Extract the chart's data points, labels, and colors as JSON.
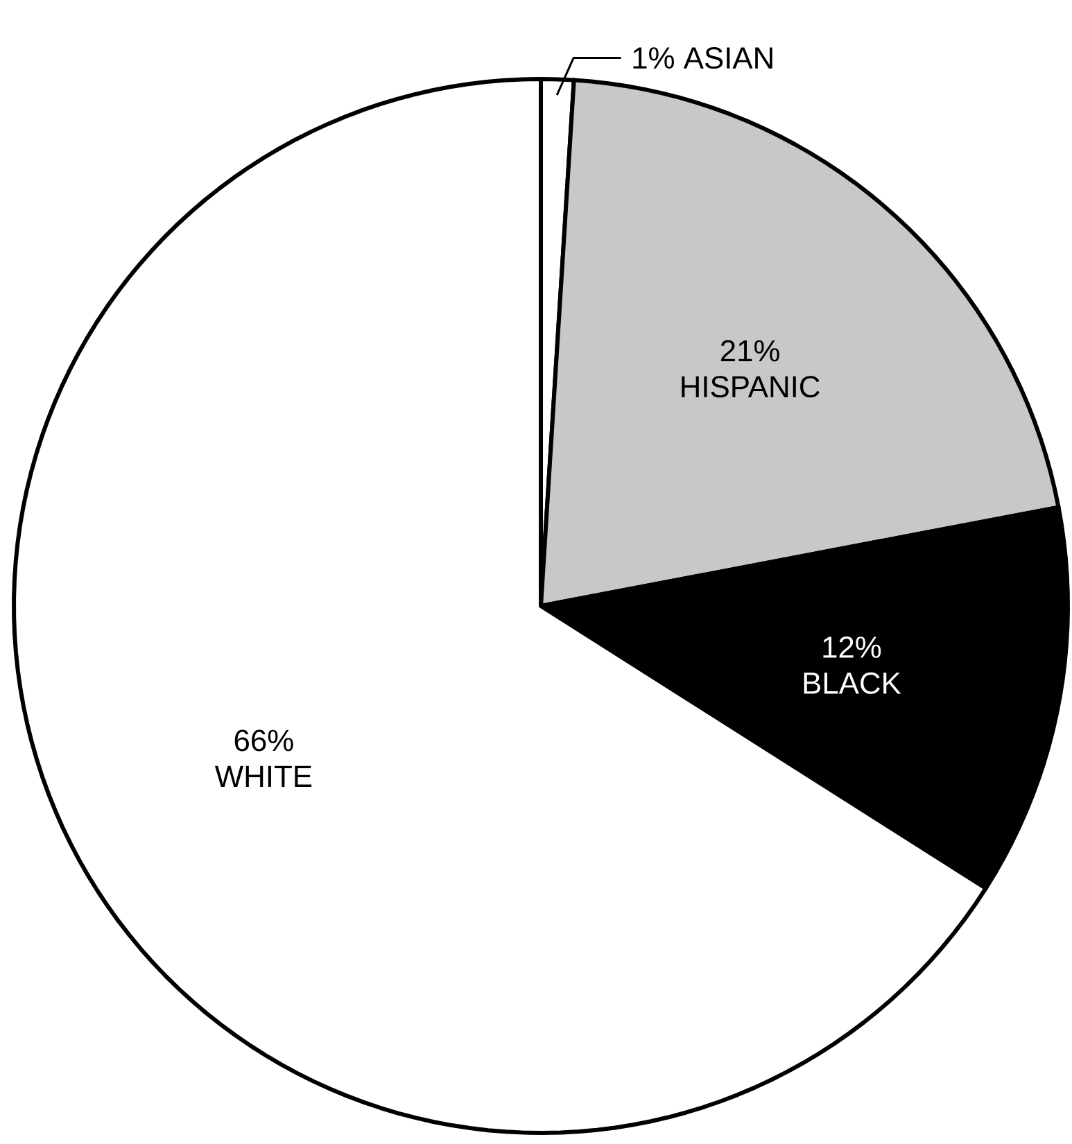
{
  "chart_data": {
    "type": "pie",
    "categories": [
      "ASIAN",
      "HISPANIC",
      "BLACK",
      "WHITE"
    ],
    "values": [
      1,
      21,
      12,
      66
    ],
    "value_labels": [
      "1%",
      "21%",
      "12%",
      "66%"
    ],
    "colors": [
      "#ffffff",
      "#c8c8c8",
      "#000000",
      "#ffffff"
    ]
  }
}
